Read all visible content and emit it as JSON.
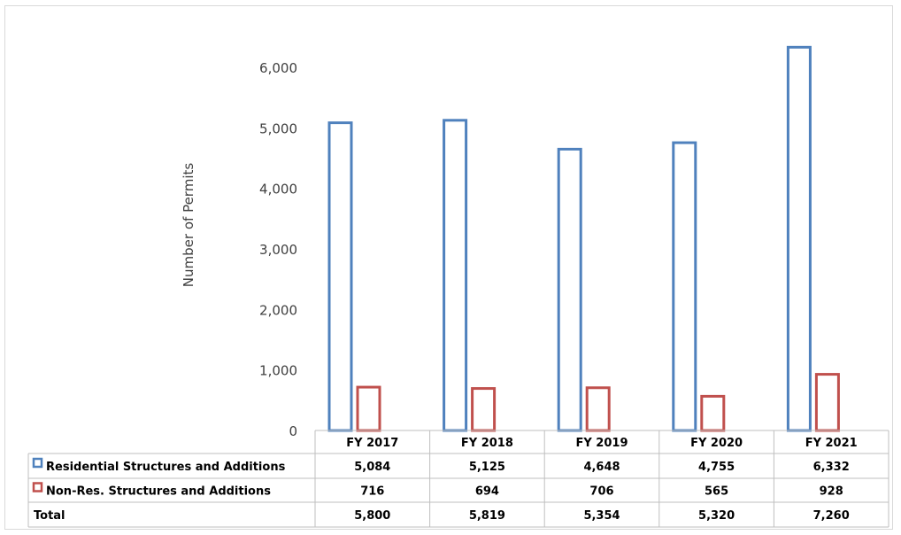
{
  "chart_data": {
    "type": "bar",
    "ylabel": "Number of Permits",
    "xlabel": "",
    "title": "",
    "ylim": [
      0,
      6500
    ],
    "yticks": [
      0,
      1000,
      2000,
      3000,
      4000,
      5000,
      6000
    ],
    "ytick_labels": [
      "0",
      "1,000",
      "2,000",
      "3,000",
      "4,000",
      "5,000",
      "6,000"
    ],
    "categories": [
      "FY 2017",
      "FY 2018",
      "FY 2019",
      "FY 2020",
      "FY 2021"
    ],
    "series": [
      {
        "name": "Residential Structures and Additions",
        "color": "#4f81bd",
        "values": [
          5084,
          5125,
          4648,
          4755,
          6332
        ],
        "labels": [
          "5,084",
          "5,125",
          "4,648",
          "4,755",
          "6,332"
        ]
      },
      {
        "name": "Non-Res. Structures and Additions",
        "color": "#c0504d",
        "values": [
          716,
          694,
          706,
          565,
          928
        ],
        "labels": [
          "716",
          "694",
          "706",
          "565",
          "928"
        ]
      }
    ],
    "total_row": {
      "name": "Total",
      "labels": [
        "5,800",
        "5,819",
        "5,354",
        "5,320",
        "7,260"
      ]
    },
    "legend": "data-table",
    "grid": false
  }
}
